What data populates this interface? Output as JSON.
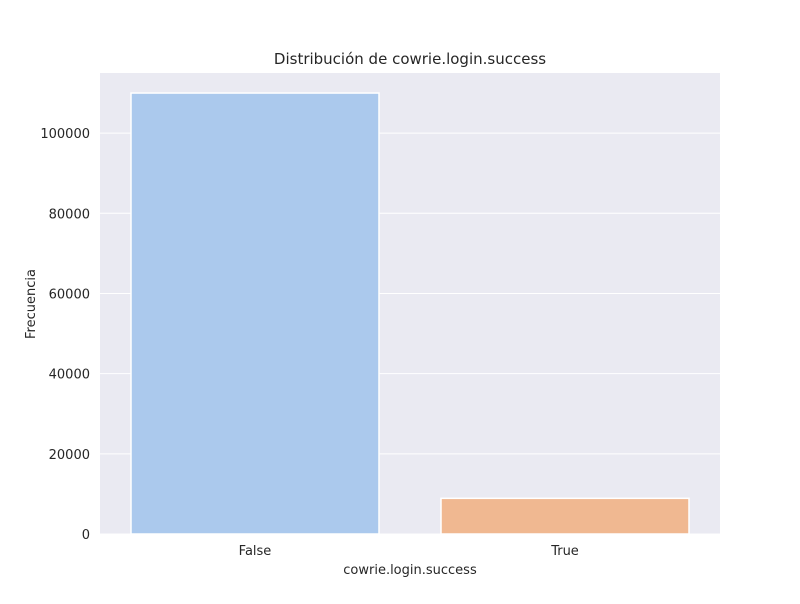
{
  "chart_data": {
    "type": "bar",
    "title": "Distribución de cowrie.login.success",
    "xlabel": "cowrie.login.success",
    "ylabel": "Frecuencia",
    "categories": [
      "False",
      "True"
    ],
    "values": [
      110000,
      8900
    ],
    "ylim": [
      0,
      115000
    ],
    "yticks": [
      0,
      20000,
      40000,
      60000,
      80000,
      100000
    ],
    "grid": true,
    "legend": "none",
    "colors": {
      "plot_background": "#eaeaf2",
      "grid": "#ffffff",
      "bars": [
        "#abc9ed",
        "#f0b891"
      ],
      "bar_edge": "#ffffff",
      "text": "#262626"
    }
  }
}
